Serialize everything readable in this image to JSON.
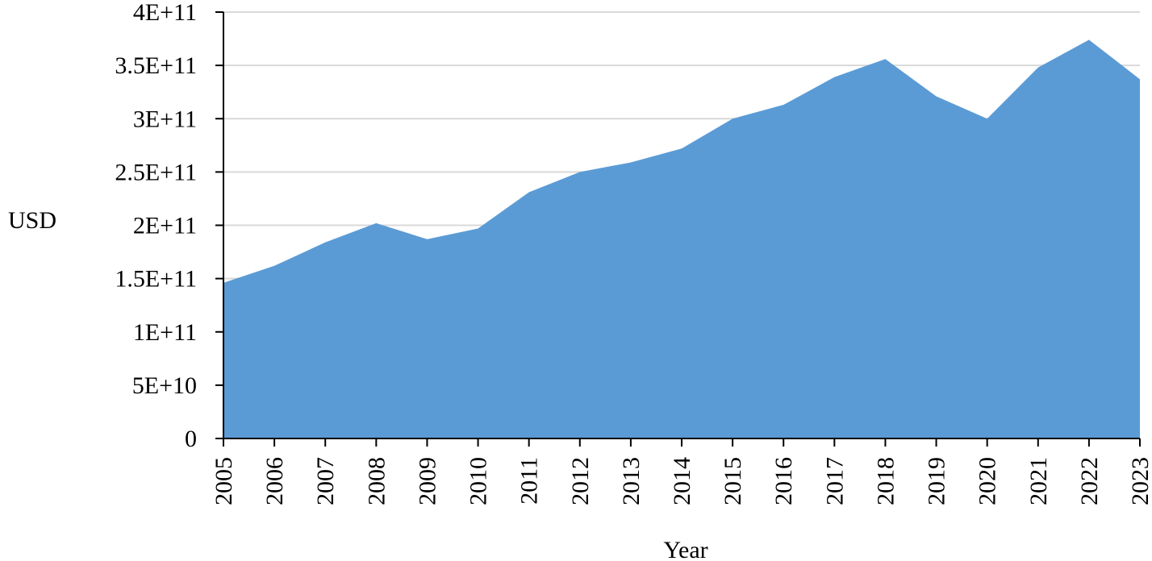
{
  "chart_data": {
    "type": "area",
    "categories": [
      "2005",
      "2006",
      "2007",
      "2008",
      "2009",
      "2010",
      "2011",
      "2012",
      "2013",
      "2014",
      "2015",
      "2016",
      "2017",
      "2018",
      "2019",
      "2020",
      "2021",
      "2022",
      "2023"
    ],
    "series": [
      {
        "values": [
          146000000000.0,
          162000000000.0,
          184000000000.0,
          202000000000.0,
          187000000000.0,
          197000000000.0,
          231000000000.0,
          250000000000.0,
          259000000000.0,
          272000000000.0,
          300000000000.0,
          313000000000.0,
          339000000000.0,
          356000000000.0,
          321000000000.0,
          300000000000.0,
          348000000000.0,
          374000000000.0,
          337000000000.0
        ],
        "color": "#5b9bd5"
      }
    ],
    "ylim": [
      0,
      400000000000.0
    ],
    "yticks": [
      {
        "value": 0,
        "label": "0"
      },
      {
        "value": 50000000000.0,
        "label": "5E+10"
      },
      {
        "value": 100000000000.0,
        "label": "1E+11"
      },
      {
        "value": 150000000000.0,
        "label": "1.5E+11"
      },
      {
        "value": 200000000000.0,
        "label": "2E+11"
      },
      {
        "value": 250000000000.0,
        "label": "2.5E+11"
      },
      {
        "value": 300000000000.0,
        "label": "3E+11"
      },
      {
        "value": 350000000000.0,
        "label": "3.5E+11"
      },
      {
        "value": 400000000000.0,
        "label": "4E+11"
      }
    ],
    "xlabel": "Year",
    "ylabel": "USD",
    "grid": true,
    "gridColor": "#d9d9d9",
    "axisColor": "#000000"
  }
}
